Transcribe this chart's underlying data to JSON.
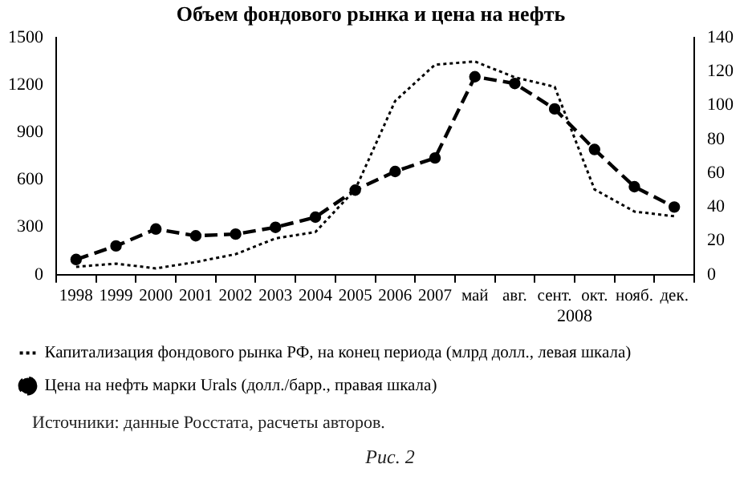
{
  "chart_data": {
    "type": "line",
    "title": "Объем фондового рынка и цена на нефть",
    "categories": [
      "1998",
      "1999",
      "2000",
      "2001",
      "2002",
      "2003",
      "2004",
      "2005",
      "2006",
      "2007",
      "май",
      "авг.",
      "сент.",
      "окт.",
      "нояб.",
      "дек."
    ],
    "series": [
      {
        "name": "Капитализация фондового рынка РФ, на конец периода (млрд долл., левая шкала)",
        "color": "#000000",
        "line_style": "dotted",
        "marker": "none",
        "values": [
          50,
          70,
          40,
          80,
          130,
          230,
          270,
          540,
          1100,
          1330,
          1350,
          1250,
          1190,
          540,
          400,
          370
        ]
      },
      {
        "name": "Цена на нефть марки Urals (долл./барр., правая шкала)",
        "color": "#000000",
        "line_style": "dashed",
        "marker": "circle",
        "axis": "y2",
        "values": [
          9,
          17,
          27,
          23,
          24,
          28,
          34,
          50,
          61,
          69,
          117,
          113,
          98,
          74,
          52,
          40
        ]
      }
    ],
    "ylim": [
      0,
      1500
    ],
    "yticks": [
      0,
      300,
      600,
      900,
      1200,
      1500
    ],
    "y2lim": [
      0,
      140
    ],
    "y2ticks": [
      0,
      20,
      40,
      60,
      80,
      100,
      120,
      140
    ],
    "legend": "bottom",
    "annotations": [
      "2008",
      "Источники: данные Росстата, расчеты авторов.",
      "Рис. 2"
    ]
  }
}
